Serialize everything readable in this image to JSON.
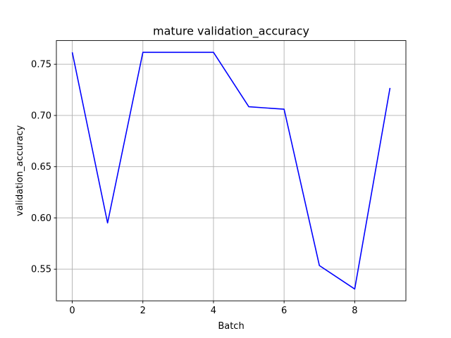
{
  "chart_data": {
    "type": "line",
    "title": "mature validation_accuracy",
    "xlabel": "Batch",
    "ylabel": "validation_accuracy",
    "x": [
      0,
      1,
      2,
      3,
      4,
      5,
      6,
      7,
      8,
      9
    ],
    "series": [
      {
        "values": [
          0.7616,
          0.5951,
          0.7616,
          0.7616,
          0.7616,
          0.7085,
          0.7061,
          0.5535,
          0.5306,
          0.7269
        ],
        "color": "#0000ff"
      }
    ],
    "xlim": [
      -0.45,
      9.45
    ],
    "ylim": [
      0.5191,
      0.7731
    ],
    "xticks": [
      0,
      2,
      4,
      6,
      8
    ],
    "xtick_labels": [
      "0",
      "2",
      "4",
      "6",
      "8"
    ],
    "yticks": [
      0.55,
      0.6,
      0.65,
      0.7,
      0.75
    ],
    "ytick_labels": [
      "0.55",
      "0.60",
      "0.65",
      "0.70",
      "0.75"
    ],
    "grid": true,
    "legend": false
  }
}
